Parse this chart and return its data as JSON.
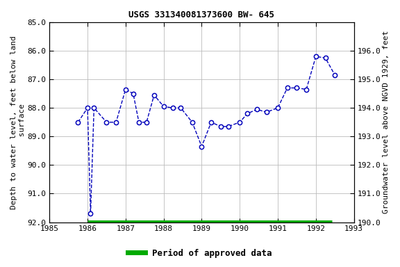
{
  "title": "USGS 331340081373600 BW- 645",
  "ylabel_left": "Depth to water level, feet below land\n surface",
  "ylabel_right": "Groundwater level above NGVD 1929, feet",
  "xlim": [
    1985,
    1993
  ],
  "ylim_left": [
    92.0,
    85.0
  ],
  "ylim_right_bottom": 190.0,
  "ylim_right_top": 197.0,
  "xticks": [
    1985,
    1986,
    1987,
    1988,
    1989,
    1990,
    1991,
    1992,
    1993
  ],
  "yticks_left": [
    85.0,
    86.0,
    87.0,
    88.0,
    89.0,
    90.0,
    91.0,
    92.0
  ],
  "yticks_right": [
    196.0,
    195.0,
    194.0,
    193.0,
    192.0,
    191.0,
    190.0
  ],
  "data_x": [
    1985.75,
    1986.0,
    1986.08,
    1986.17,
    1986.5,
    1986.75,
    1987.0,
    1987.2,
    1987.35,
    1987.55,
    1987.75,
    1988.0,
    1988.25,
    1988.45,
    1988.75,
    1989.0,
    1989.25,
    1989.5,
    1989.7,
    1990.0,
    1990.2,
    1990.45,
    1990.7,
    1991.0,
    1991.25,
    1991.5,
    1991.75,
    1992.0,
    1992.25,
    1992.5
  ],
  "data_y": [
    88.5,
    88.0,
    91.7,
    88.0,
    88.5,
    88.5,
    87.35,
    87.5,
    88.5,
    88.5,
    87.55,
    87.95,
    88.0,
    88.0,
    88.5,
    89.35,
    88.5,
    88.65,
    88.65,
    88.5,
    88.2,
    88.05,
    88.15,
    88.0,
    87.3,
    87.3,
    87.35,
    86.2,
    86.25,
    86.85
  ],
  "line_color": "#0000BB",
  "marker_face": "#ffffff",
  "approved_bar_color": "#00AA00",
  "approved_bar_x_start": 1986.0,
  "approved_bar_x_end": 1992.42,
  "approved_bar_y": 92.0,
  "legend_label": "Period of approved data",
  "background_color": "#ffffff",
  "grid_color": "#bbbbbb",
  "font_size_title": 9,
  "font_size_ticks": 8,
  "font_size_label": 8,
  "font_size_legend": 9
}
